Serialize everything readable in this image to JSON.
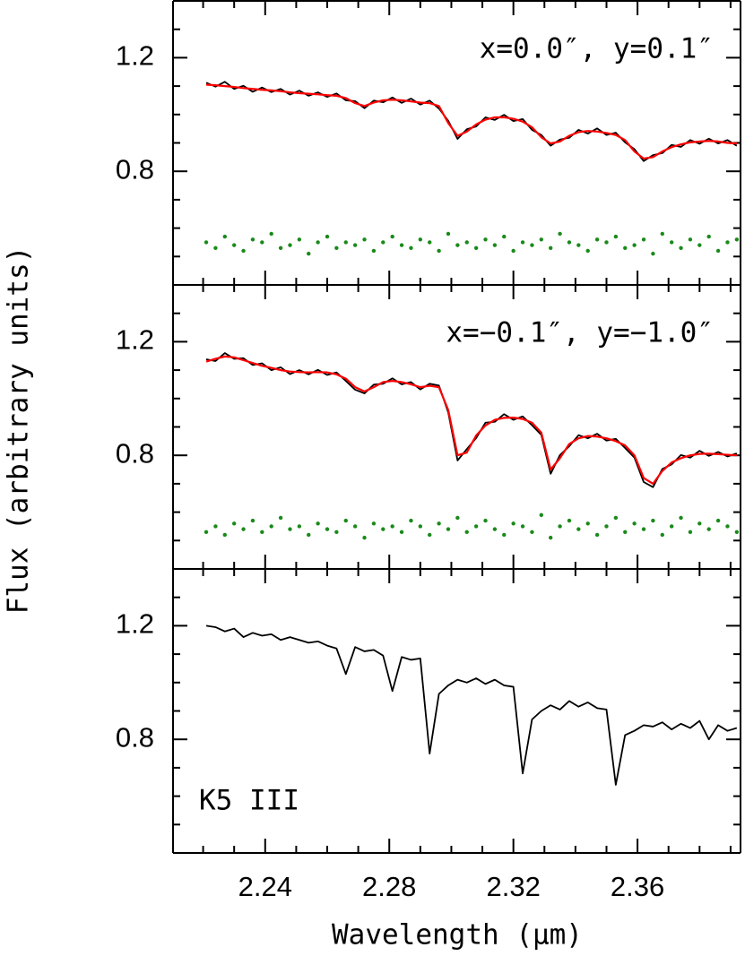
{
  "chart_data": [
    {
      "type": "line",
      "annotation": "x=0.0″,  y=0.1″",
      "x": [
        2.221,
        2.224,
        2.227,
        2.23,
        2.233,
        2.236,
        2.239,
        2.242,
        2.245,
        2.248,
        2.251,
        2.254,
        2.257,
        2.26,
        2.263,
        2.266,
        2.269,
        2.272,
        2.275,
        2.278,
        2.281,
        2.284,
        2.287,
        2.29,
        2.293,
        2.296,
        2.299,
        2.302,
        2.305,
        2.308,
        2.311,
        2.314,
        2.317,
        2.32,
        2.323,
        2.326,
        2.329,
        2.332,
        2.335,
        2.338,
        2.341,
        2.344,
        2.347,
        2.35,
        2.353,
        2.356,
        2.359,
        2.362,
        2.365,
        2.368,
        2.371,
        2.374,
        2.377,
        2.38,
        2.383,
        2.386,
        2.389,
        2.392
      ],
      "series": [
        {
          "color": "#000000",
          "marker": "line",
          "values": [
            1.112,
            1.098,
            1.115,
            1.09,
            1.101,
            1.08,
            1.095,
            1.079,
            1.09,
            1.07,
            1.084,
            1.066,
            1.078,
            1.062,
            1.074,
            1.05,
            1.047,
            1.022,
            1.049,
            1.043,
            1.06,
            1.041,
            1.056,
            1.035,
            1.049,
            1.021,
            0.978,
            0.914,
            0.948,
            0.958,
            0.99,
            0.981,
            0.999,
            0.977,
            0.984,
            0.946,
            0.928,
            0.89,
            0.912,
            0.918,
            0.946,
            0.933,
            0.951,
            0.928,
            0.936,
            0.902,
            0.878,
            0.836,
            0.857,
            0.864,
            0.893,
            0.886,
            0.91,
            0.897,
            0.915,
            0.898,
            0.91,
            0.89
          ]
        },
        {
          "color": "#ff0000",
          "marker": "line",
          "values": [
            1.105,
            1.103,
            1.1,
            1.097,
            1.093,
            1.09,
            1.087,
            1.085,
            1.082,
            1.078,
            1.075,
            1.073,
            1.071,
            1.068,
            1.066,
            1.058,
            1.04,
            1.03,
            1.042,
            1.05,
            1.052,
            1.05,
            1.046,
            1.042,
            1.04,
            1.03,
            0.97,
            0.925,
            0.94,
            0.965,
            0.982,
            0.99,
            0.99,
            0.985,
            0.975,
            0.955,
            0.92,
            0.898,
            0.905,
            0.925,
            0.938,
            0.942,
            0.94,
            0.935,
            0.928,
            0.91,
            0.87,
            0.845,
            0.85,
            0.87,
            0.885,
            0.895,
            0.902,
            0.905,
            0.907,
            0.905,
            0.9,
            0.898
          ]
        },
        {
          "color": "#1a8a1a",
          "marker": "dot",
          "values": [
            0.55,
            0.53,
            0.57,
            0.54,
            0.52,
            0.56,
            0.55,
            0.58,
            0.53,
            0.54,
            0.56,
            0.51,
            0.55,
            0.57,
            0.53,
            0.55,
            0.54,
            0.56,
            0.52,
            0.55,
            0.57,
            0.54,
            0.53,
            0.56,
            0.55,
            0.52,
            0.58,
            0.54,
            0.55,
            0.53,
            0.56,
            0.54,
            0.57,
            0.52,
            0.55,
            0.54,
            0.56,
            0.53,
            0.58,
            0.55,
            0.54,
            0.52,
            0.56,
            0.55,
            0.57,
            0.53,
            0.54,
            0.56,
            0.51,
            0.58,
            0.55,
            0.53,
            0.56,
            0.54,
            0.57,
            0.52,
            0.55,
            0.56
          ]
        }
      ],
      "xlim": [
        2.2103,
        2.3932
      ],
      "ylim": [
        0.4,
        1.4
      ],
      "xticks": [
        2.24,
        2.28,
        2.32,
        2.36
      ],
      "xminorticks": [
        2.22,
        2.23,
        2.25,
        2.26,
        2.27,
        2.29,
        2.3,
        2.31,
        2.33,
        2.34,
        2.35,
        2.37,
        2.38,
        2.39
      ],
      "yticks": [
        0.8,
        1.2
      ],
      "yminorticks": [
        0.5,
        0.6,
        0.7,
        0.9,
        1.0,
        1.1,
        1.3
      ],
      "show_xticklabels": false
    },
    {
      "type": "line",
      "annotation": "x=−0.1″,  y=−1.0″",
      "ylabel": "Flux (arbitrary units)",
      "x": [
        2.221,
        2.224,
        2.227,
        2.23,
        2.233,
        2.236,
        2.239,
        2.242,
        2.245,
        2.248,
        2.251,
        2.254,
        2.257,
        2.26,
        2.263,
        2.266,
        2.269,
        2.272,
        2.275,
        2.278,
        2.281,
        2.284,
        2.287,
        2.29,
        2.293,
        2.296,
        2.299,
        2.302,
        2.305,
        2.308,
        2.311,
        2.314,
        2.317,
        2.32,
        2.323,
        2.326,
        2.329,
        2.332,
        2.335,
        2.338,
        2.341,
        2.344,
        2.347,
        2.35,
        2.353,
        2.356,
        2.359,
        2.362,
        2.365,
        2.368,
        2.371,
        2.374,
        2.377,
        2.38,
        2.383,
        2.386,
        2.389,
        2.392
      ],
      "series": [
        {
          "color": "#000000",
          "marker": "line",
          "values": [
            1.138,
            1.132,
            1.16,
            1.14,
            1.142,
            1.118,
            1.124,
            1.1,
            1.11,
            1.086,
            1.1,
            1.085,
            1.101,
            1.083,
            1.092,
            1.062,
            1.031,
            1.018,
            1.049,
            1.052,
            1.071,
            1.05,
            1.058,
            1.032,
            1.052,
            1.046,
            0.951,
            0.782,
            0.822,
            0.861,
            0.915,
            0.918,
            0.945,
            0.925,
            0.937,
            0.906,
            0.872,
            0.735,
            0.801,
            0.832,
            0.871,
            0.86,
            0.876,
            0.852,
            0.858,
            0.826,
            0.792,
            0.706,
            0.688,
            0.752,
            0.768,
            0.801,
            0.792,
            0.816,
            0.798,
            0.812,
            0.796,
            0.807
          ]
        },
        {
          "color": "#ff0000",
          "marker": "line",
          "values": [
            1.13,
            1.14,
            1.148,
            1.145,
            1.135,
            1.125,
            1.115,
            1.108,
            1.1,
            1.095,
            1.093,
            1.092,
            1.093,
            1.092,
            1.085,
            1.07,
            1.04,
            1.025,
            1.04,
            1.058,
            1.062,
            1.058,
            1.05,
            1.04,
            1.045,
            1.04,
            0.96,
            0.8,
            0.81,
            0.87,
            0.905,
            0.925,
            0.932,
            0.933,
            0.928,
            0.915,
            0.88,
            0.75,
            0.79,
            0.84,
            0.86,
            0.868,
            0.866,
            0.86,
            0.85,
            0.835,
            0.8,
            0.72,
            0.7,
            0.745,
            0.775,
            0.79,
            0.8,
            0.805,
            0.806,
            0.804,
            0.802,
            0.8
          ]
        },
        {
          "color": "#1a8a1a",
          "marker": "dot",
          "values": [
            0.53,
            0.55,
            0.52,
            0.56,
            0.54,
            0.57,
            0.53,
            0.55,
            0.58,
            0.54,
            0.55,
            0.52,
            0.56,
            0.54,
            0.53,
            0.57,
            0.55,
            0.51,
            0.56,
            0.54,
            0.55,
            0.53,
            0.57,
            0.55,
            0.52,
            0.56,
            0.54,
            0.58,
            0.53,
            0.55,
            0.57,
            0.54,
            0.52,
            0.56,
            0.55,
            0.53,
            0.59,
            0.51,
            0.55,
            0.57,
            0.54,
            0.56,
            0.52,
            0.55,
            0.58,
            0.53,
            0.56,
            0.54,
            0.57,
            0.52,
            0.55,
            0.58,
            0.53,
            0.56,
            0.54,
            0.57,
            0.55,
            0.53
          ]
        }
      ],
      "xlim": [
        2.2103,
        2.3932
      ],
      "ylim": [
        0.4,
        1.4
      ],
      "xticks": [
        2.24,
        2.28,
        2.32,
        2.36
      ],
      "xminorticks": [
        2.22,
        2.23,
        2.25,
        2.26,
        2.27,
        2.29,
        2.3,
        2.31,
        2.33,
        2.34,
        2.35,
        2.37,
        2.38,
        2.39
      ],
      "yticks": [
        0.8,
        1.2
      ],
      "yminorticks": [
        0.5,
        0.6,
        0.7,
        0.9,
        1.0,
        1.1,
        1.3
      ],
      "show_xticklabels": false
    },
    {
      "type": "line",
      "annotation": "K5 III",
      "xlabel": "Wavelength (μm)",
      "x": [
        2.221,
        2.224,
        2.227,
        2.23,
        2.233,
        2.236,
        2.239,
        2.242,
        2.245,
        2.248,
        2.251,
        2.254,
        2.257,
        2.26,
        2.263,
        2.266,
        2.269,
        2.272,
        2.275,
        2.278,
        2.281,
        2.284,
        2.287,
        2.29,
        2.293,
        2.296,
        2.299,
        2.302,
        2.305,
        2.308,
        2.311,
        2.314,
        2.317,
        2.32,
        2.323,
        2.326,
        2.329,
        2.332,
        2.335,
        2.338,
        2.341,
        2.344,
        2.347,
        2.35,
        2.353,
        2.356,
        2.359,
        2.362,
        2.365,
        2.368,
        2.371,
        2.374,
        2.377,
        2.38,
        2.383,
        2.386,
        2.389,
        2.392
      ],
      "series": [
        {
          "color": "#000000",
          "marker": "line",
          "values": [
            1.2,
            1.195,
            1.18,
            1.19,
            1.16,
            1.175,
            1.165,
            1.17,
            1.15,
            1.16,
            1.15,
            1.14,
            1.145,
            1.13,
            1.12,
            1.03,
            1.125,
            1.11,
            1.115,
            1.095,
            0.97,
            1.09,
            1.08,
            1.085,
            0.75,
            0.96,
            0.99,
            1.01,
            1.0,
            1.015,
            0.995,
            1.01,
            0.99,
            0.985,
            0.68,
            0.87,
            0.9,
            0.92,
            0.905,
            0.935,
            0.915,
            0.93,
            0.91,
            0.905,
            0.64,
            0.815,
            0.83,
            0.85,
            0.845,
            0.86,
            0.835,
            0.855,
            0.84,
            0.865,
            0.8,
            0.85,
            0.83,
            0.84
          ]
        }
      ],
      "xlim": [
        2.2103,
        2.3932
      ],
      "ylim": [
        0.4,
        1.4
      ],
      "xticks": [
        2.24,
        2.28,
        2.32,
        2.36
      ],
      "xminorticks": [
        2.22,
        2.23,
        2.25,
        2.26,
        2.27,
        2.29,
        2.3,
        2.31,
        2.33,
        2.34,
        2.35,
        2.37,
        2.38,
        2.39
      ],
      "yticks": [
        0.8,
        1.2
      ],
      "yminorticks": [
        0.5,
        0.6,
        0.7,
        0.9,
        1.0,
        1.1,
        1.3
      ],
      "show_xticklabels": true
    }
  ]
}
